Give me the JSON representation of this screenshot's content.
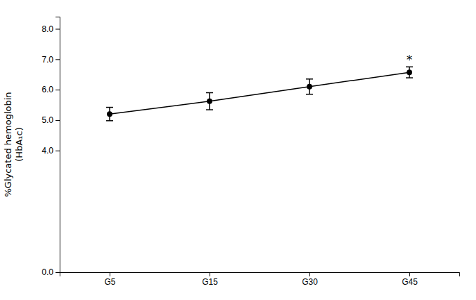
{
  "chart_data": {
    "type": "line",
    "categories": [
      "G5",
      "G15",
      "G30",
      "G45"
    ],
    "values": [
      5.2,
      5.62,
      6.1,
      6.57
    ],
    "errors": [
      0.22,
      0.28,
      0.25,
      0.18
    ],
    "y_label": "%Glycated hemoglobin\n(HbA₁c)",
    "ylim": [
      0.0,
      8.4
    ],
    "yticks": [
      {
        "value": 0.0,
        "label": "0.0"
      },
      {
        "value": 4.0,
        "label": "4.0"
      },
      {
        "value": 5.0,
        "label": "5.0"
      },
      {
        "value": 6.0,
        "label": "6.0"
      },
      {
        "value": 7.0,
        "label": "7.0"
      },
      {
        "value": 8.0,
        "label": "8.0"
      }
    ],
    "color": "#000000",
    "marker": "circle",
    "line_style": "solid",
    "grid": false,
    "annotations": [
      {
        "text": "*",
        "x": "G45",
        "y": 6.84
      }
    ]
  }
}
